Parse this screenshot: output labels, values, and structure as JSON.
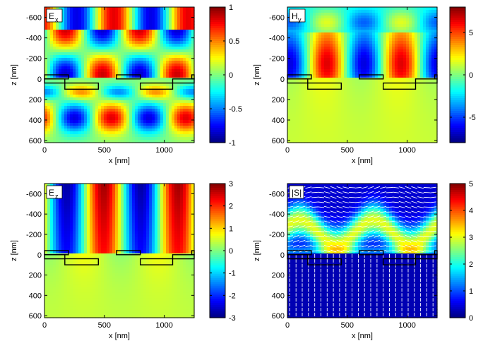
{
  "chart_data": [
    {
      "type": "heatmap",
      "panel_label": "E",
      "panel_label_sub": "x",
      "xlabel": "x [nm]",
      "ylabel": "z [nm]",
      "xlim": [
        0,
        1250
      ],
      "ylim": [
        -700,
        620
      ],
      "y_reversed": true,
      "xticks": [
        0,
        500,
        1000
      ],
      "yticks": [
        -600,
        -400,
        -200,
        0,
        200,
        400,
        600
      ],
      "colorbar": {
        "range": [
          -1,
          1
        ],
        "ticks": [
          -1,
          -0.5,
          0,
          0.5,
          1
        ],
        "tick_labels": [
          "-1",
          "-0.5",
          "0",
          "0.5",
          "1"
        ]
      },
      "colormap": "jet",
      "field": "ex"
    },
    {
      "type": "heatmap",
      "panel_label": "H",
      "panel_label_sub": "y",
      "xlabel": "x [nm]",
      "ylabel": "z [nm]",
      "xlim": [
        0,
        1250
      ],
      "ylim": [
        -700,
        620
      ],
      "y_reversed": true,
      "xticks": [
        0,
        500,
        1000
      ],
      "yticks": [
        -600,
        -400,
        -200,
        0,
        200,
        400,
        600
      ],
      "colorbar": {
        "range": [
          -8,
          8
        ],
        "ticks": [
          -5,
          0,
          5
        ],
        "tick_labels": [
          "-5",
          "0",
          "5"
        ]
      },
      "colormap": "jet",
      "field": "hy"
    },
    {
      "type": "heatmap",
      "panel_label": "E",
      "panel_label_sub": "z",
      "xlabel": "x [nm]",
      "ylabel": "z [nm]",
      "xlim": [
        0,
        1250
      ],
      "ylim": [
        -700,
        620
      ],
      "y_reversed": true,
      "xticks": [
        0,
        500,
        1000
      ],
      "yticks": [
        -600,
        -400,
        -200,
        0,
        200,
        400,
        600
      ],
      "colorbar": {
        "range": [
          -3,
          3
        ],
        "ticks": [
          -3,
          -2,
          -1,
          0,
          1,
          2,
          3
        ],
        "tick_labels": [
          "-3",
          "-2",
          "-1",
          "0",
          "1",
          "2",
          "3"
        ]
      },
      "colormap": "jet",
      "field": "ez"
    },
    {
      "type": "heatmap",
      "panel_label": "|S|",
      "panel_label_sub": "",
      "xlabel": "x [nm]",
      "ylabel": "z [nm]",
      "xlim": [
        0,
        1250
      ],
      "ylim": [
        -700,
        620
      ],
      "y_reversed": true,
      "xticks": [
        0,
        500,
        1000
      ],
      "yticks": [
        -600,
        -400,
        -200,
        0,
        200,
        400,
        600
      ],
      "colorbar": {
        "range": [
          0,
          5
        ],
        "ticks": [
          0,
          1,
          2,
          3,
          4,
          5
        ],
        "tick_labels": [
          "0",
          "1",
          "2",
          "3",
          "4",
          "5"
        ]
      },
      "colormap": "jet",
      "field": "s",
      "arrows": true
    }
  ],
  "structure": {
    "upper_bars": [
      [
        -210,
        200,
        -40,
        0
      ],
      [
        600,
        800,
        -40,
        0
      ],
      [
        1230,
        1400,
        -40,
        0
      ]
    ],
    "lower_bars": [
      [
        -40,
        170,
        0,
        40
      ],
      [
        170,
        450,
        40,
        100
      ],
      [
        800,
        1070,
        40,
        100
      ],
      [
        1070,
        1300,
        0,
        40
      ]
    ]
  }
}
